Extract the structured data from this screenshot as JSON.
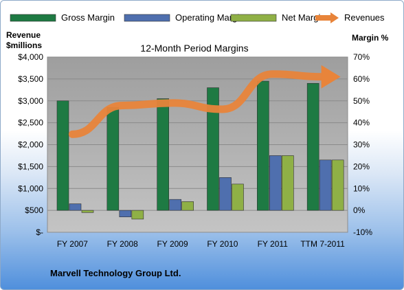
{
  "chart_data": {
    "type": "bar",
    "title": "12-Month Period Margins",
    "footer": "Marvell Technology Group Ltd.",
    "y_left_label": [
      "Revenue",
      "$millions"
    ],
    "y_right_label": "Margin %",
    "categories": [
      "FY 2007",
      "FY 2008",
      "FY 2009",
      "FY 2010",
      "FY 2011",
      "TTM 7-2011"
    ],
    "y_left_ticks": [
      "$-",
      "$500",
      "$1,000",
      "$1,500",
      "$2,000",
      "$2,500",
      "$3,000",
      "$3,500",
      "$4,000"
    ],
    "y_left_lim": [
      0,
      4000
    ],
    "y_right_ticks": [
      "-10%",
      "0%",
      "10%",
      "20%",
      "30%",
      "40%",
      "50%",
      "60%",
      "70%"
    ],
    "y_right_lim": [
      -10,
      70
    ],
    "series": [
      {
        "name": "Gross Margin",
        "axis": "right",
        "kind": "bar",
        "color": "#1e7a43",
        "values": [
          50,
          47,
          51,
          56,
          59,
          58
        ]
      },
      {
        "name": "Operating Margin",
        "axis": "right",
        "kind": "bar",
        "color": "#4f6fae",
        "values": [
          3,
          -3,
          5,
          15,
          25,
          23
        ]
      },
      {
        "name": "Net Margin",
        "axis": "right",
        "kind": "bar",
        "color": "#8fb046",
        "values": [
          -1,
          -4,
          4,
          12,
          25,
          23
        ]
      },
      {
        "name": "Revenues",
        "axis": "left",
        "kind": "line",
        "color": "#e8843a",
        "values": [
          2237,
          2895,
          2951,
          2808,
          3612,
          3550
        ]
      }
    ],
    "legend_position": "top",
    "plot_background": "#a6a6a6",
    "grid": true
  }
}
